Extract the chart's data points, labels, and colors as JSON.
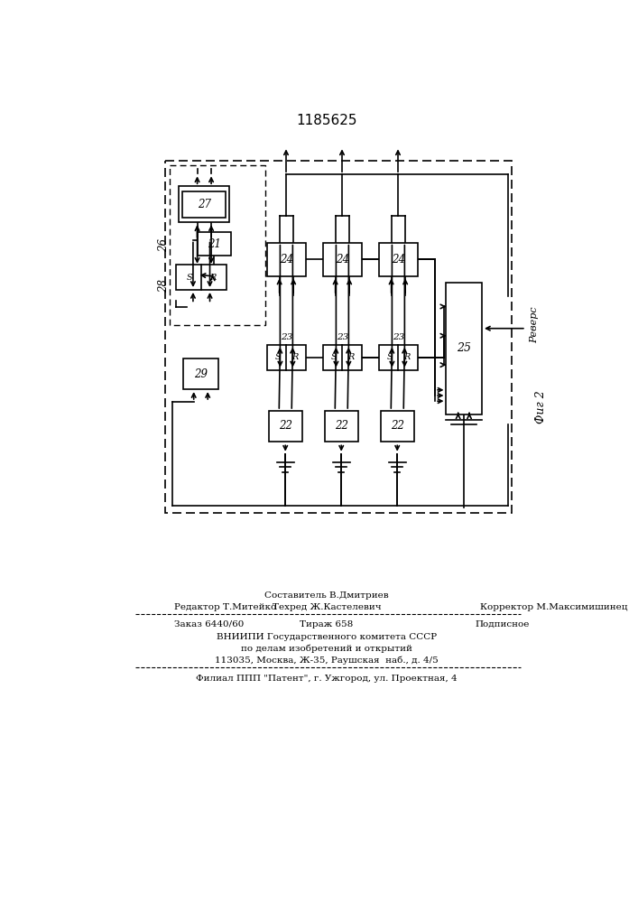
{
  "title": "1185625",
  "fig2_label": "Фиг 2",
  "revers_label": "Реверс",
  "background": "#ffffff",
  "footer": {
    "line1_center": "Составитель В.Дмитриев",
    "line2_left": "Редактор Т.Митейко",
    "line2_center": "Техред Ж.Кастелевич",
    "line2_right": "Корректор М.Максимишинец",
    "line3_left": "Заказ 6440/60",
    "line3_center": "Тираж 658",
    "line3_right": "Подписное",
    "line4": "ВНИИПИ Государственного комитета СССР",
    "line5": "по делам изобретений и открытий",
    "line6": "113035, Москва, Ж-35, Раушская  наб., д. 4/5",
    "line7": "Филиал ППП \"Патент\", г. Ужгород, ул. Проектная, 4"
  }
}
